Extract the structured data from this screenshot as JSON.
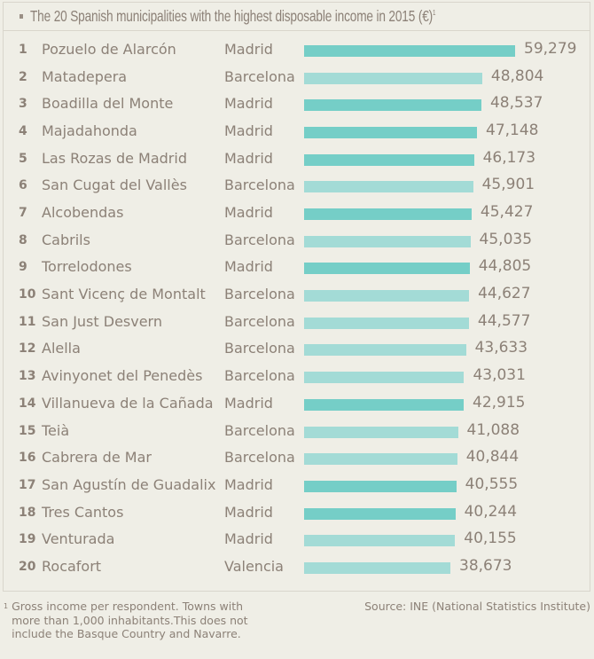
{
  "chart_data": {
    "type": "bar",
    "orientation": "horizontal",
    "title": "The 20 Spanish municipalities with the highest disposable income in 2015  (€)",
    "title_footnote_marker": "1",
    "columns": [
      "rank",
      "municipality",
      "province",
      "value"
    ],
    "rows": [
      {
        "rank": "1",
        "name": "Pozuelo de Alarcón",
        "region": "Madrid",
        "value": 59279,
        "label": "59,279",
        "color": "#75cec7"
      },
      {
        "rank": "2",
        "name": "Matadepera",
        "region": "Barcelona",
        "value": 48804,
        "label": "48,804",
        "color": "#a3dbd6"
      },
      {
        "rank": "3",
        "name": "Boadilla del Monte",
        "region": "Madrid",
        "value": 48537,
        "label": "48,537",
        "color": "#75cec7"
      },
      {
        "rank": "4",
        "name": "Majadahonda",
        "region": "Madrid",
        "value": 47148,
        "label": "47,148",
        "color": "#75cec7"
      },
      {
        "rank": "5",
        "name": "Las Rozas de Madrid",
        "region": "Madrid",
        "value": 46173,
        "label": "46,173",
        "color": "#75cec7"
      },
      {
        "rank": "6",
        "name": "San Cugat del Vallès",
        "region": "Barcelona",
        "value": 45901,
        "label": "45,901",
        "color": "#a3dbd6"
      },
      {
        "rank": "7",
        "name": "Alcobendas",
        "region": "Madrid",
        "value": 45427,
        "label": "45,427",
        "color": "#75cec7"
      },
      {
        "rank": "8",
        "name": "Cabrils",
        "region": "Barcelona",
        "value": 45035,
        "label": "45,035",
        "color": "#a3dbd6"
      },
      {
        "rank": "9",
        "name": "Torrelodones",
        "region": "Madrid",
        "value": 44805,
        "label": "44,805",
        "color": "#75cec7"
      },
      {
        "rank": "10",
        "name": "Sant Vicenç de Montalt",
        "region": "Barcelona",
        "value": 44627,
        "label": "44,627",
        "color": "#a3dbd6"
      },
      {
        "rank": "11",
        "name": "San Just Desvern",
        "region": "Barcelona",
        "value": 44577,
        "label": "44,577",
        "color": "#a3dbd6"
      },
      {
        "rank": "12",
        "name": "Alella",
        "region": "Barcelona",
        "value": 43633,
        "label": "43,633",
        "color": "#a3dbd6"
      },
      {
        "rank": "13",
        "name": "Avinyonet del Penedès",
        "region": "Barcelona",
        "value": 43031,
        "label": "43,031",
        "color": "#a3dbd6"
      },
      {
        "rank": "14",
        "name": "Villanueva de la Cañada",
        "region": "Madrid",
        "value": 42915,
        "label": "42,915",
        "color": "#75cec7"
      },
      {
        "rank": "15",
        "name": "Teià",
        "region": "Barcelona",
        "value": 41088,
        "label": "41,088",
        "color": "#a3dbd6"
      },
      {
        "rank": "16",
        "name": "Cabrera de Mar",
        "region": "Barcelona",
        "value": 40844,
        "label": "40,844",
        "color": "#a3dbd6"
      },
      {
        "rank": "17",
        "name": "San Agustín de Guadalix",
        "region": "Madrid",
        "value": 40555,
        "label": "40,555",
        "color": "#75cec7"
      },
      {
        "rank": "18",
        "name": "Tres Cantos",
        "region": "Madrid",
        "value": 40244,
        "label": "40,244",
        "color": "#75cec7"
      },
      {
        "rank": "19",
        "name": "Venturada",
        "region": "Madrid",
        "value": 40155,
        "label": "40,155",
        "color": "#a3dbd6"
      },
      {
        "rank": "20",
        "name": "Rocafort",
        "region": "Valencia",
        "value": 38673,
        "label": "38,673",
        "color": "#a3dbd6"
      }
    ]
  },
  "footnote": {
    "marker": "1",
    "text": "Gross income per respondent. Towns with more than 1,000 inhabitants.This does not include the Basque Country and Navarre."
  },
  "source": "Source: INE (National Statistics Institute)"
}
